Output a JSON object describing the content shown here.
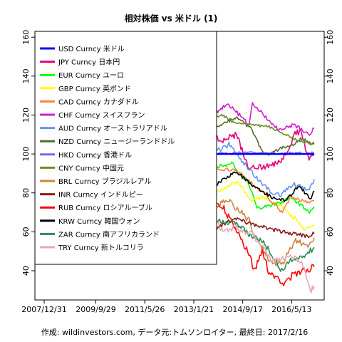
{
  "chart_data": {
    "type": "line",
    "title": "相対株価 vs 米ドル (1)",
    "caption": "作成: wildinvestors.com, データ元:トムソンロイター, 最終日: 2017/2/16",
    "xlabel": "",
    "ylabel": "",
    "x_ticks": [
      "2007/12/31",
      "2009/9/29",
      "2011/5/26",
      "2013/1/21",
      "2014/9/17",
      "2016/5/13"
    ],
    "x_range": [
      "2007/12/31",
      "2017/2/16"
    ],
    "ylim": [
      25,
      163
    ],
    "y_ticks": [
      40,
      60,
      80,
      100,
      120,
      140,
      160
    ],
    "legend_position": "top-left",
    "grid": false,
    "series": [
      {
        "name": "USD Curncy 米ドル",
        "color": "#0000ff",
        "x": [
          "2007/12/31",
          "2017/2/16"
        ],
        "values": [
          100,
          100
        ]
      },
      {
        "name": "JPY Curncy 日本円",
        "color": "#e6007e",
        "x": [
          "2007/12/31",
          "2008/6/1",
          "2008/10/1",
          "2008/12/15",
          "2009/4/1",
          "2009/11/27",
          "2010/5/1",
          "2010/9/15",
          "2011/3/17",
          "2011/8/1",
          "2011/10/31",
          "2012/3/1",
          "2012/9/1",
          "2012/12/1",
          "2013/5/20",
          "2014/1/1",
          "2014/7/1",
          "2014/12/1",
          "2015/6/5",
          "2016/1/1",
          "2016/6/24",
          "2016/9/1",
          "2016/12/15",
          "2017/2/16"
        ],
        "values": [
          100,
          102,
          120,
          139,
          125,
          146,
          135,
          148,
          157,
          146,
          158,
          142,
          149,
          136,
          113,
          107,
          110,
          93,
          93,
          96,
          110,
          112,
          97,
          100
        ]
      },
      {
        "name": "EUR Curncy ユーロ",
        "color": "#00ff00",
        "x": [
          "2007/12/31",
          "2008/7/15",
          "2008/10/27",
          "2009/3/1",
          "2009/11/25",
          "2010/6/7",
          "2011/5/1",
          "2012/7/24",
          "2013/1/1",
          "2014/5/6",
          "2014/12/1",
          "2015/3/13",
          "2016/1/1",
          "2016/5/1",
          "2016/12/20",
          "2017/2/16"
        ],
        "values": [
          100,
          108,
          85,
          85,
          102,
          80,
          98,
          82,
          91,
          95,
          85,
          72,
          75,
          78,
          70,
          73
        ]
      },
      {
        "name": "GBP Curncy 英ポンド",
        "color": "#ffff00",
        "x": [
          "2007/12/31",
          "2008/6/1",
          "2009/1/23",
          "2009/8/1",
          "2010/5/1",
          "2010/11/1",
          "2011/6/1",
          "2012/6/1",
          "2013/1/1",
          "2013/6/1",
          "2014/7/15",
          "2015/1/1",
          "2015/6/1",
          "2016/1/1",
          "2016/6/24",
          "2016/10/7",
          "2017/2/16"
        ],
        "values": [
          100,
          99,
          70,
          84,
          74,
          81,
          82,
          78,
          82,
          77,
          86,
          76,
          78,
          73,
          67,
          61,
          63
        ]
      },
      {
        "name": "CAD Curncy カナダドル",
        "color": "#ff8040",
        "x": [
          "2007/12/31",
          "2008/9/1",
          "2009/3/9",
          "2009/9/1",
          "2010/6/1",
          "2011/7/21",
          "2012/6/1",
          "2013/1/1",
          "2013/6/1",
          "2014/1/1",
          "2014/7/1",
          "2015/1/1",
          "2015/6/1",
          "2016/1/20",
          "2016/5/1",
          "2016/12/1",
          "2017/2/16"
        ],
        "values": [
          100,
          96,
          80,
          92,
          96,
          105,
          98,
          100,
          96,
          92,
          92,
          85,
          80,
          70,
          78,
          75,
          76
        ]
      },
      {
        "name": "CHF Curncy スイスフラン",
        "color": "#d11fd1",
        "x": [
          "2007/12/31",
          "2008/6/1",
          "2008/11/1",
          "2009/3/1",
          "2009/11/1",
          "2010/6/1",
          "2010/12/1",
          "2011/8/9",
          "2011/9/15",
          "2012/1/1",
          "2012/7/1",
          "2013/1/1",
          "2013/6/1",
          "2014/3/17",
          "2014/12/1",
          "2015/1/15",
          "2015/6/1",
          "2016/1/1",
          "2016/6/1",
          "2016/12/20",
          "2017/2/16"
        ],
        "values": [
          100,
          108,
          98,
          96,
          110,
          105,
          118,
          140,
          122,
          120,
          115,
          120,
          117,
          126,
          115,
          126,
          120,
          112,
          115,
          110,
          113
        ]
      },
      {
        "name": "AUD Curncy オーストラリアドル",
        "color": "#6495ed",
        "x": [
          "2007/12/31",
          "2008/7/15",
          "2008/10/27",
          "2009/3/1",
          "2009/11/1",
          "2010/5/25",
          "2011/7/27",
          "2012/3/1",
          "2012/8/1",
          "2013/4/11",
          "2013/8/30",
          "2014/4/1",
          "2014/12/1",
          "2015/9/7",
          "2016/1/15",
          "2016/6/1",
          "2016/12/1",
          "2017/2/16"
        ],
        "values": [
          100,
          110,
          70,
          76,
          107,
          94,
          120,
          114,
          117,
          118,
          100,
          105,
          92,
          80,
          79,
          85,
          81,
          87
        ]
      },
      {
        "name": "NZD Curncy ニュージーランドドル",
        "color": "#556b2f",
        "x": [
          "2007/12/31",
          "2008/3/1",
          "2008/10/1",
          "2009/3/2",
          "2009/11/1",
          "2010/6/1",
          "2011/8/1",
          "2012/6/1",
          "2013/4/1",
          "2014/7/1",
          "2015/1/1",
          "2015/6/1",
          "2015/9/1",
          "2016/1/1",
          "2016/6/1",
          "2016/9/1",
          "2017/2/16"
        ],
        "values": [
          100,
          104,
          88,
          88,
          97,
          100,
          108,
          104,
          109,
          119,
          113,
          100,
          100,
          103,
          105,
          108,
          105
        ]
      },
      {
        "name": "HKD Curncy 香港ドル",
        "color": "#7b68ee",
        "x": [
          "2007/12/31",
          "2008/6/1",
          "2009/1/1",
          "2010/1/1",
          "2011/1/1",
          "2012/1/1",
          "2013/1/1",
          "2014/1/1",
          "2015/1/1",
          "2016/1/1",
          "2017/2/16"
        ],
        "values": [
          100,
          100.4,
          100.6,
          100.6,
          100.2,
          100.3,
          100.5,
          100.5,
          100.6,
          100.4,
          100.5
        ]
      },
      {
        "name": "CNY Curncy 中国元",
        "color": "#6b8e23",
        "x": [
          "2007/12/31",
          "2008/7/1",
          "2009/1/1",
          "2010/6/1",
          "2011/6/1",
          "2012/6/1",
          "2013/6/1",
          "2014/1/14",
          "2014/6/1",
          "2015/8/11",
          "2016/1/1",
          "2016/6/1",
          "2017/1/1",
          "2017/2/16"
        ],
        "values": [
          100,
          106,
          107,
          107,
          112,
          115,
          118,
          120,
          116,
          114,
          111,
          108,
          105,
          106
        ]
      },
      {
        "name": "BRL Curncy ブラジルレアル",
        "color": "#cd853f",
        "x": [
          "2007/12/31",
          "2008/8/1",
          "2008/12/5",
          "2009/6/1",
          "2010/6/1",
          "2011/7/26",
          "2012/6/1",
          "2013/1/1",
          "2013/8/21",
          "2014/4/1",
          "2014/12/1",
          "2015/3/1",
          "2015/9/23",
          "2016/1/21",
          "2016/7/1",
          "2016/12/1",
          "2017/2/16"
        ],
        "values": [
          100,
          110,
          70,
          86,
          90,
          108,
          86,
          88,
          72,
          76,
          66,
          56,
          43,
          44,
          55,
          53,
          57
        ]
      },
      {
        "name": "INR Curncy インドルピー",
        "color": "#8b1a1a",
        "x": [
          "2007/12/31",
          "2008/6/1",
          "2009/3/1",
          "2010/1/1",
          "2011/1/1",
          "2011/9/1",
          "2012/6/21",
          "2013/1/1",
          "2013/8/28",
          "2014/6/1",
          "2015/1/1",
          "2016/1/1",
          "2016/11/24",
          "2017/2/16"
        ],
        "values": [
          100,
          94,
          77,
          87,
          90,
          87,
          70,
          73,
          60,
          67,
          64,
          60,
          58,
          59
        ]
      },
      {
        "name": "RUB Curncy ロシアルーブル",
        "color": "#ff0000",
        "x": [
          "2007/12/31",
          "2008/7/1",
          "2009/2/19",
          "2009/6/1",
          "2010/6/1",
          "2011/4/1",
          "2011/10/1",
          "2012/6/1",
          "2013/1/1",
          "2014/1/1",
          "2014/12/16",
          "2015/2/1",
          "2015/5/15",
          "2015/8/1",
          "2016/1/21",
          "2016/6/1",
          "2017/2/16"
        ],
        "values": [
          100,
          104,
          68,
          78,
          80,
          86,
          76,
          76,
          82,
          74,
          48,
          40,
          50,
          40,
          33,
          38,
          42
        ]
      },
      {
        "name": "KRW Curncy 韓国ウォン",
        "color": "#000000",
        "x": [
          "2007/12/31",
          "2008/6/1",
          "2008/11/24",
          "2009/3/2",
          "2009/9/1",
          "2010/5/25",
          "2011/7/28",
          "2011/9/23",
          "2012/6/1",
          "2013/1/14",
          "2013/6/24",
          "2014/7/3",
          "2015/1/1",
          "2015/9/7",
          "2016/2/25",
          "2016/8/15",
          "2016/12/28",
          "2017/2/16"
        ],
        "values": [
          100,
          90,
          62,
          60,
          75,
          78,
          86,
          78,
          80,
          87,
          81,
          91,
          84,
          78,
          76,
          84,
          77,
          81
        ]
      },
      {
        "name": "ZAR Curncy 南アフリカランド",
        "color": "#2e8b57",
        "x": [
          "2007/12/31",
          "2008/4/1",
          "2008/10/22",
          "2009/5/1",
          "2010/6/1",
          "2011/5/1",
          "2012/1/1",
          "2012/6/1",
          "2013/6/1",
          "2014/1/1",
          "2014/7/1",
          "2015/1/1",
          "2015/6/1",
          "2016/1/11",
          "2016/5/1",
          "2016/12/1",
          "2017/2/16"
        ],
        "values": [
          100,
          88,
          62,
          84,
          88,
          96,
          82,
          82,
          68,
          65,
          64,
          58,
          55,
          40,
          45,
          49,
          52
        ]
      },
      {
        "name": "TRY Curncy 新トルコリラ",
        "color": "#e6a8b4",
        "x": [
          "2007/12/31",
          "2008/6/1",
          "2008/11/1",
          "2009/6/1",
          "2010/4/1",
          "2011/1/1",
          "2011/9/1",
          "2012/6/1",
          "2013/4/1",
          "2013/8/1",
          "2014/1/27",
          "2014/7/1",
          "2015/1/1",
          "2015/8/1",
          "2015/9/18",
          "2016/4/1",
          "2016/9/1",
          "2017/1/11",
          "2017/2/16"
        ],
        "values": [
          100,
          96,
          72,
          82,
          88,
          84,
          72,
          74,
          76,
          70,
          60,
          62,
          60,
          48,
          45,
          48,
          45,
          30,
          32
        ]
      }
    ]
  }
}
